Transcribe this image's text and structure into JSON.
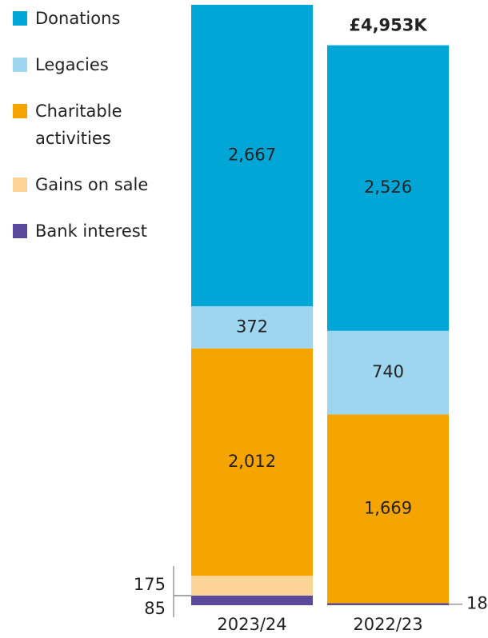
{
  "chart_data": {
    "type": "stacked_bar",
    "categories": [
      "2023/24",
      "2022/23"
    ],
    "series": [
      {
        "name": "Bank interest",
        "color": "#5b4a9b",
        "values": [
          85,
          18
        ]
      },
      {
        "name": "Gains on sale",
        "color": "#fdd497",
        "values": [
          175,
          0
        ]
      },
      {
        "name": "Charitable activities",
        "color": "#f5a400",
        "values": [
          2012,
          1669
        ],
        "value_labels": [
          "2,012",
          "1,669"
        ]
      },
      {
        "name": "Legacies",
        "color": "#9dd6ee",
        "values": [
          372,
          740
        ]
      },
      {
        "name": "Donations",
        "color": "#00a6d6",
        "values": [
          2667,
          2526
        ],
        "value_labels": [
          "2,667",
          "2,526"
        ]
      }
    ],
    "annotations": [
      {
        "text": "£4,953K",
        "category": 1
      }
    ]
  }
}
